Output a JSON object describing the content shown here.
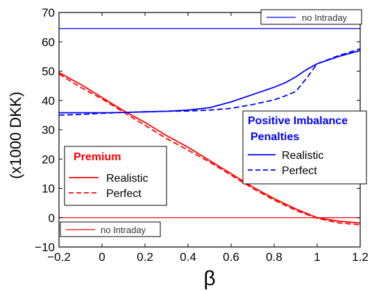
{
  "chart_data": {
    "type": "line",
    "xlabel": "β",
    "ylabel": "(x1000 DKK)",
    "xlim": [
      -0.2,
      1.2
    ],
    "ylim": [
      -10,
      70
    ],
    "xticks": [
      -0.2,
      0,
      0.2,
      0.4,
      0.6,
      0.8,
      1,
      1.2
    ],
    "yticks": [
      -10,
      0,
      10,
      20,
      30,
      40,
      50,
      60,
      70
    ],
    "grid": false,
    "colors": {
      "premium": "#ff0000",
      "imbalance": "#0000ff"
    },
    "groups": {
      "premium": {
        "title": "Premium",
        "color": "#ff0000",
        "legend_position": "lower-left"
      },
      "imbalance": {
        "title_line1": "Positive Imbalance",
        "title_line2": "Penalties",
        "color": "#0000ff",
        "legend_position": "right"
      }
    },
    "series": [
      {
        "name": "Realistic",
        "group": "premium",
        "dash": "solid",
        "x": [
          -0.2,
          -0.1,
          0,
          0.1,
          0.2,
          0.3,
          0.4,
          0.5,
          0.6,
          0.7,
          0.8,
          0.9,
          1.0,
          1.1,
          1.2
        ],
        "y": [
          49.5,
          45.5,
          41,
          36.5,
          32.5,
          28,
          24,
          19.5,
          15,
          10.5,
          6.5,
          3,
          0,
          -1.2,
          -1.8
        ]
      },
      {
        "name": "Perfect",
        "group": "premium",
        "dash": "dashed",
        "x": [
          -0.2,
          -0.1,
          0,
          0.1,
          0.2,
          0.3,
          0.4,
          0.5,
          0.6,
          0.7,
          0.8,
          0.9,
          1.0,
          1.1,
          1.2
        ],
        "y": [
          49,
          44.5,
          40.5,
          36,
          31.5,
          27,
          23,
          19,
          14.5,
          10,
          6,
          2.5,
          -0.2,
          -1.8,
          -2.4
        ]
      },
      {
        "name": "Realistic",
        "group": "imbalance",
        "dash": "solid",
        "x": [
          -0.2,
          -0.1,
          0,
          0.1,
          0.2,
          0.3,
          0.4,
          0.5,
          0.6,
          0.7,
          0.8,
          0.85,
          0.9,
          0.95,
          1.0,
          1.1,
          1.2
        ],
        "y": [
          35.8,
          35.8,
          35.8,
          35.9,
          36.1,
          36.3,
          36.7,
          37.5,
          39.5,
          42,
          44.5,
          46,
          48,
          50.5,
          52.5,
          55,
          57
        ]
      },
      {
        "name": "Perfect",
        "group": "imbalance",
        "dash": "dashed",
        "x": [
          -0.2,
          -0.1,
          0,
          0.1,
          0.2,
          0.3,
          0.4,
          0.5,
          0.6,
          0.7,
          0.8,
          0.85,
          0.9,
          0.95,
          1.0,
          1.1,
          1.2
        ],
        "y": [
          35,
          35.2,
          35.6,
          35.9,
          36.1,
          36.3,
          36.4,
          36.7,
          37.3,
          38.6,
          40.2,
          41.5,
          43,
          47.5,
          52.5,
          55.3,
          57.6
        ]
      }
    ],
    "reference_lines": [
      {
        "name": "no Intraday",
        "group": "imbalance",
        "y": 64.5,
        "color": "#0000ff",
        "label_position": "top-right"
      },
      {
        "name": "no Intraday",
        "group": "premium",
        "y": 0,
        "color": "#ff0000",
        "label_position": "bottom-left"
      }
    ]
  }
}
